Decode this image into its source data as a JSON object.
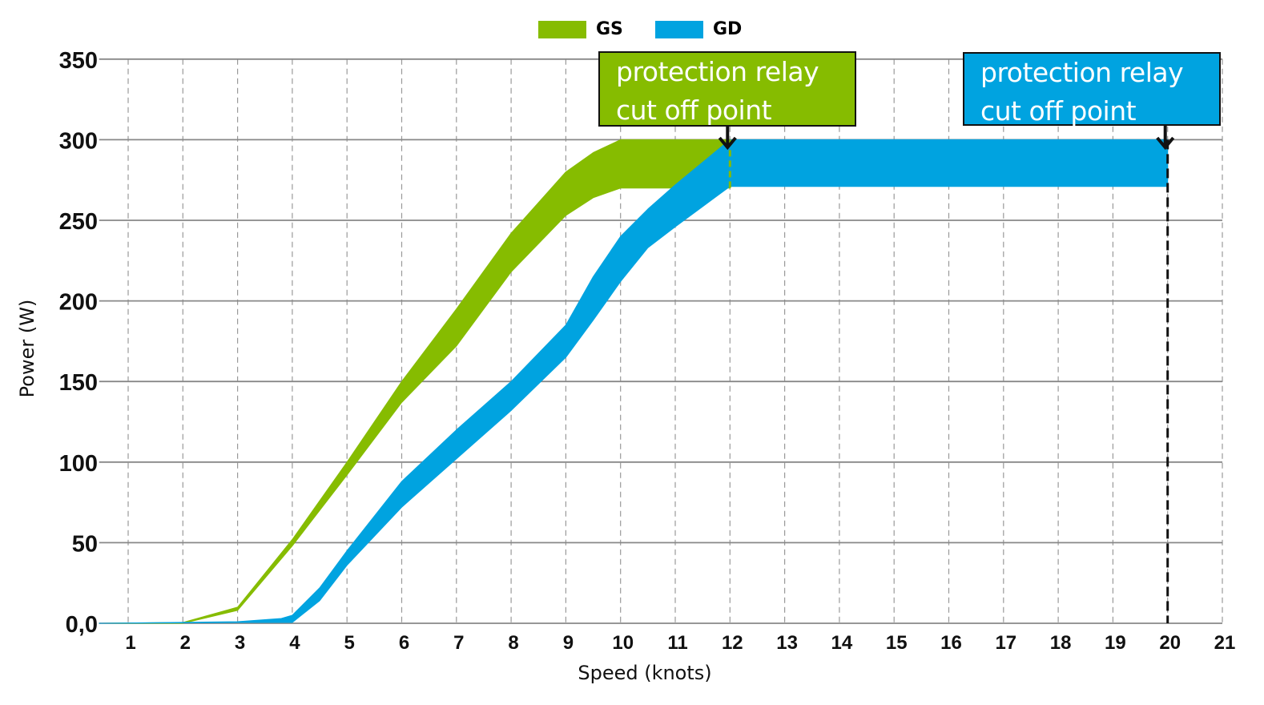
{
  "chart_data": {
    "type": "area",
    "title": "",
    "xlabel": "Speed (knots)",
    "ylabel": "Power (W)",
    "xlim": [
      0.47,
      21
    ],
    "ylim": [
      0,
      350
    ],
    "xticks": [
      "1",
      "2",
      "3",
      "4",
      "5",
      "6",
      "7",
      "8",
      "9",
      "10",
      "11",
      "12",
      "13",
      "14",
      "15",
      "16",
      "17",
      "18",
      "19",
      "20",
      "21"
    ],
    "yticks": [
      {
        "v": 0,
        "label": "0,0"
      },
      {
        "v": 50,
        "label": "50"
      },
      {
        "v": 100,
        "label": "100"
      },
      {
        "v": 150,
        "label": "150"
      },
      {
        "v": 200,
        "label": "200"
      },
      {
        "v": 250,
        "label": "250"
      },
      {
        "v": 300,
        "label": "300"
      },
      {
        "v": 350,
        "label": "350"
      }
    ],
    "grid": true,
    "legend_position": "top-center",
    "series": [
      {
        "name": "GS",
        "color": "#86bc00",
        "upper": [
          [
            0.47,
            0
          ],
          [
            2,
            0.5
          ],
          [
            3,
            10
          ],
          [
            4,
            52
          ],
          [
            5,
            100
          ],
          [
            6,
            150
          ],
          [
            7,
            195
          ],
          [
            8,
            242
          ],
          [
            9,
            280
          ],
          [
            9.5,
            292
          ],
          [
            10,
            300
          ],
          [
            12,
            300
          ]
        ],
        "lower": [
          [
            0.47,
            0
          ],
          [
            2,
            0
          ],
          [
            3,
            8
          ],
          [
            4,
            48
          ],
          [
            5,
            92
          ],
          [
            6,
            137
          ],
          [
            7,
            172
          ],
          [
            8,
            218
          ],
          [
            9,
            253
          ],
          [
            9.5,
            264
          ],
          [
            10,
            270
          ],
          [
            12,
            270
          ]
        ],
        "cutoff": 12
      },
      {
        "name": "GD",
        "color": "#00a3e0",
        "upper": [
          [
            0.47,
            0
          ],
          [
            3,
            1
          ],
          [
            3.8,
            3
          ],
          [
            4,
            5
          ],
          [
            4.5,
            22
          ],
          [
            5,
            45
          ],
          [
            6,
            88
          ],
          [
            7,
            120
          ],
          [
            8,
            150
          ],
          [
            9,
            185
          ],
          [
            9.5,
            215
          ],
          [
            10,
            240
          ],
          [
            10.5,
            257
          ],
          [
            11,
            272
          ],
          [
            12,
            300
          ],
          [
            20,
            300
          ]
        ],
        "lower": [
          [
            0.47,
            0
          ],
          [
            3,
            0.5
          ],
          [
            4,
            0.5
          ],
          [
            4.5,
            14
          ],
          [
            5,
            36
          ],
          [
            6,
            72
          ],
          [
            7,
            102
          ],
          [
            8,
            132
          ],
          [
            9,
            165
          ],
          [
            9.5,
            188
          ],
          [
            10,
            212
          ],
          [
            10.5,
            233
          ],
          [
            11,
            246
          ],
          [
            12,
            271
          ],
          [
            20,
            271
          ]
        ],
        "cutoff": 20
      }
    ],
    "annotations": [
      {
        "text_line1": "protection relay",
        "text_line2": "cut off point",
        "x": 12,
        "series": "GS"
      },
      {
        "text_line1": "protection relay",
        "text_line2": "cut off point",
        "x": 20,
        "series": "GD"
      }
    ]
  }
}
